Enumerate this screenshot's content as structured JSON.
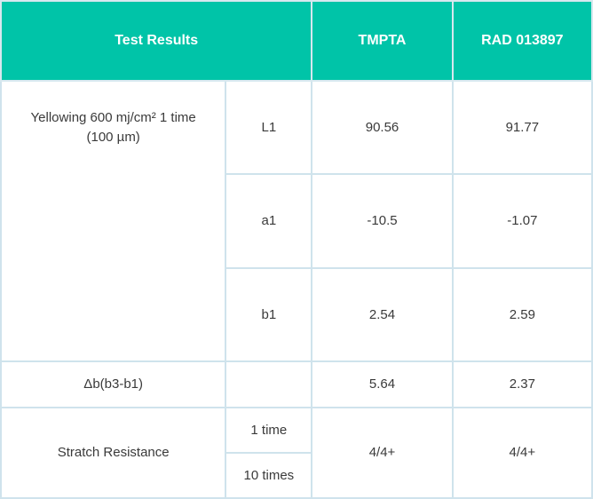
{
  "header": {
    "test_results": "Test Results",
    "col_a": "TMPTA",
    "col_b": "RAD 013897"
  },
  "rows": {
    "yellowing": {
      "label": "Yellowing 600 mj/cm² 1 time\n(100 µm)",
      "l1": {
        "sub": "L1",
        "a": "90.56",
        "b": "91.77"
      },
      "a1": {
        "sub": "a1",
        "a": "-10.5",
        "b": "-1.07"
      },
      "b1": {
        "sub": "b1",
        "a": "2.54",
        "b": "2.59"
      }
    },
    "delta_b": {
      "label": "Δb(b3-b1)",
      "a": "5.64",
      "b": "2.37"
    },
    "scratch": {
      "label": "Stratch Resistance",
      "sub_1": "1 time",
      "sub_2": "10 times",
      "a": "4/4+",
      "b": "4/4+"
    }
  },
  "colors": {
    "header_bg": "#00c4a8",
    "border": "#cfe3ec",
    "text": "#3a3a3a"
  }
}
